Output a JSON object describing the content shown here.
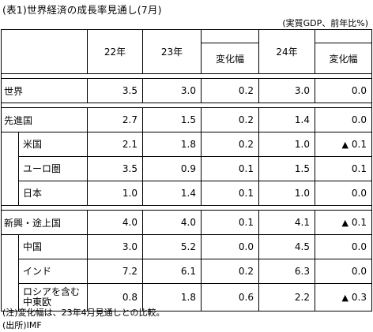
{
  "title": "(表1)世界経済の成長率見通し(7月)",
  "unit": "(実質GDP、前年比%)",
  "columns": {
    "y22": "22年",
    "y23": "23年",
    "y23_change": "変化幅",
    "y24": "24年",
    "y24_change": "変化幅"
  },
  "rows": [
    {
      "label": "世界",
      "y22": "3.5",
      "y23": "3.0",
      "y23_change": "0.2",
      "y24": "3.0",
      "y24_change": "0.0"
    },
    {
      "label": "先進国",
      "y22": "2.7",
      "y23": "1.5",
      "y23_change": "0.2",
      "y24": "1.4",
      "y24_change": "0.0"
    },
    {
      "label": "米国",
      "y22": "2.1",
      "y23": "1.8",
      "y23_change": "0.2",
      "y24": "1.0",
      "y24_change": "0.1",
      "neg": "▲"
    },
    {
      "label": "ユーロ圏",
      "y22": "3.5",
      "y23": "0.9",
      "y23_change": "0.1",
      "y24": "1.5",
      "y24_change": "0.1"
    },
    {
      "label": "日本",
      "y22": "1.0",
      "y23": "1.4",
      "y23_change": "0.1",
      "y24": "1.0",
      "y24_change": "0.0"
    },
    {
      "label": "新興・途上国",
      "y22": "4.0",
      "y23": "4.0",
      "y23_change": "0.1",
      "y24": "4.1",
      "y24_change": "0.1",
      "neg": "▲"
    },
    {
      "label": "中国",
      "y22": "3.0",
      "y23": "5.2",
      "y23_change": "0.0",
      "y24": "4.5",
      "y24_change": "0.0"
    },
    {
      "label": "インド",
      "y22": "7.2",
      "y23": "6.1",
      "y23_change": "0.2",
      "y24": "6.3",
      "y24_change": "0.0"
    },
    {
      "label_line1": "ロシアを含む",
      "label_line2": "中東欧",
      "y22": "0.8",
      "y23": "1.8",
      "y23_change": "0.6",
      "y24": "2.2",
      "y24_change": "0.3",
      "neg": "▲"
    }
  ],
  "notes": [
    "(注)変化幅は、23年4月見通しとの比較。",
    "(出所)IMF"
  ]
}
